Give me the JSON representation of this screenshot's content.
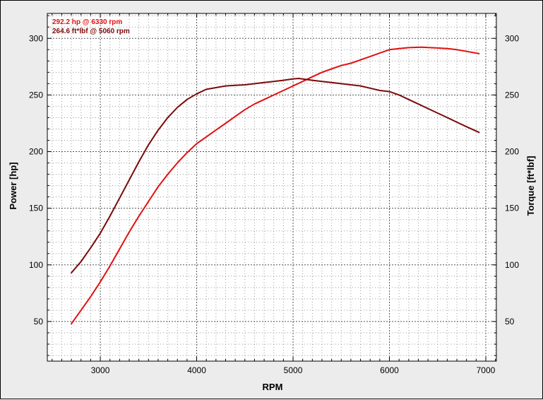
{
  "chart_data": {
    "type": "line",
    "xlabel": "RPM",
    "ylabel": "Power [hp]",
    "y2label": "Torque [ft*lbf]",
    "xlim": [
      2450,
      7110
    ],
    "ylim": [
      15,
      322
    ],
    "y2lim": [
      15,
      322
    ],
    "x_ticks": [
      "3000",
      "4000",
      "5000",
      "6000",
      "7000"
    ],
    "y_ticks": [
      "50",
      "100",
      "150",
      "200",
      "250",
      "300"
    ],
    "y2_ticks": [
      "50",
      "100",
      "150",
      "200",
      "250",
      "300"
    ],
    "grid": true,
    "annotations": [
      {
        "text": "292.2 hp @ 6330 rpm",
        "color": "#e01010"
      },
      {
        "text": "264.6 ft*lbf @ 5060 rpm",
        "color": "#7a0a0a"
      }
    ],
    "series": [
      {
        "color": "#e01010",
        "points": [
          [
            2700,
            48
          ],
          [
            2800,
            60
          ],
          [
            2900,
            72
          ],
          [
            3000,
            85
          ],
          [
            3100,
            99
          ],
          [
            3200,
            114
          ],
          [
            3300,
            129
          ],
          [
            3400,
            143
          ],
          [
            3500,
            156
          ],
          [
            3600,
            169
          ],
          [
            3700,
            180
          ],
          [
            3800,
            190
          ],
          [
            3900,
            199
          ],
          [
            4000,
            207
          ],
          [
            4100,
            213
          ],
          [
            4200,
            219
          ],
          [
            4300,
            225
          ],
          [
            4400,
            231
          ],
          [
            4500,
            237
          ],
          [
            4600,
            242
          ],
          [
            4700,
            246
          ],
          [
            4800,
            250
          ],
          [
            4900,
            254
          ],
          [
            5000,
            258
          ],
          [
            5100,
            262
          ],
          [
            5200,
            266
          ],
          [
            5300,
            270
          ],
          [
            5400,
            273
          ],
          [
            5500,
            276
          ],
          [
            5600,
            278
          ],
          [
            5700,
            281
          ],
          [
            5800,
            284
          ],
          [
            5900,
            287
          ],
          [
            6000,
            290
          ],
          [
            6100,
            291
          ],
          [
            6200,
            291.8
          ],
          [
            6330,
            292.2
          ],
          [
            6500,
            291.5
          ],
          [
            6600,
            291
          ],
          [
            6700,
            290
          ],
          [
            6800,
            288.5
          ],
          [
            6930,
            286.5
          ]
        ]
      },
      {
        "color": "#7a0a0a",
        "points": [
          [
            2700,
            93
          ],
          [
            2800,
            103
          ],
          [
            2900,
            115
          ],
          [
            3000,
            128
          ],
          [
            3100,
            143
          ],
          [
            3200,
            159
          ],
          [
            3300,
            175
          ],
          [
            3400,
            191
          ],
          [
            3500,
            206
          ],
          [
            3600,
            219
          ],
          [
            3700,
            230
          ],
          [
            3800,
            239
          ],
          [
            3900,
            246
          ],
          [
            4000,
            251
          ],
          [
            4100,
            255
          ],
          [
            4200,
            256.5
          ],
          [
            4300,
            258
          ],
          [
            4400,
            258.5
          ],
          [
            4500,
            259
          ],
          [
            4600,
            260
          ],
          [
            4700,
            261
          ],
          [
            4800,
            262
          ],
          [
            4900,
            263
          ],
          [
            5000,
            264.2
          ],
          [
            5060,
            264.6
          ],
          [
            5200,
            263
          ],
          [
            5300,
            262
          ],
          [
            5400,
            261
          ],
          [
            5500,
            260
          ],
          [
            5600,
            259
          ],
          [
            5700,
            258
          ],
          [
            5800,
            256
          ],
          [
            5900,
            254
          ],
          [
            6000,
            253
          ],
          [
            6100,
            250
          ],
          [
            6200,
            246
          ],
          [
            6300,
            242
          ],
          [
            6400,
            238
          ],
          [
            6500,
            234
          ],
          [
            6600,
            230
          ],
          [
            6700,
            226
          ],
          [
            6800,
            222
          ],
          [
            6930,
            217
          ]
        ]
      }
    ]
  }
}
